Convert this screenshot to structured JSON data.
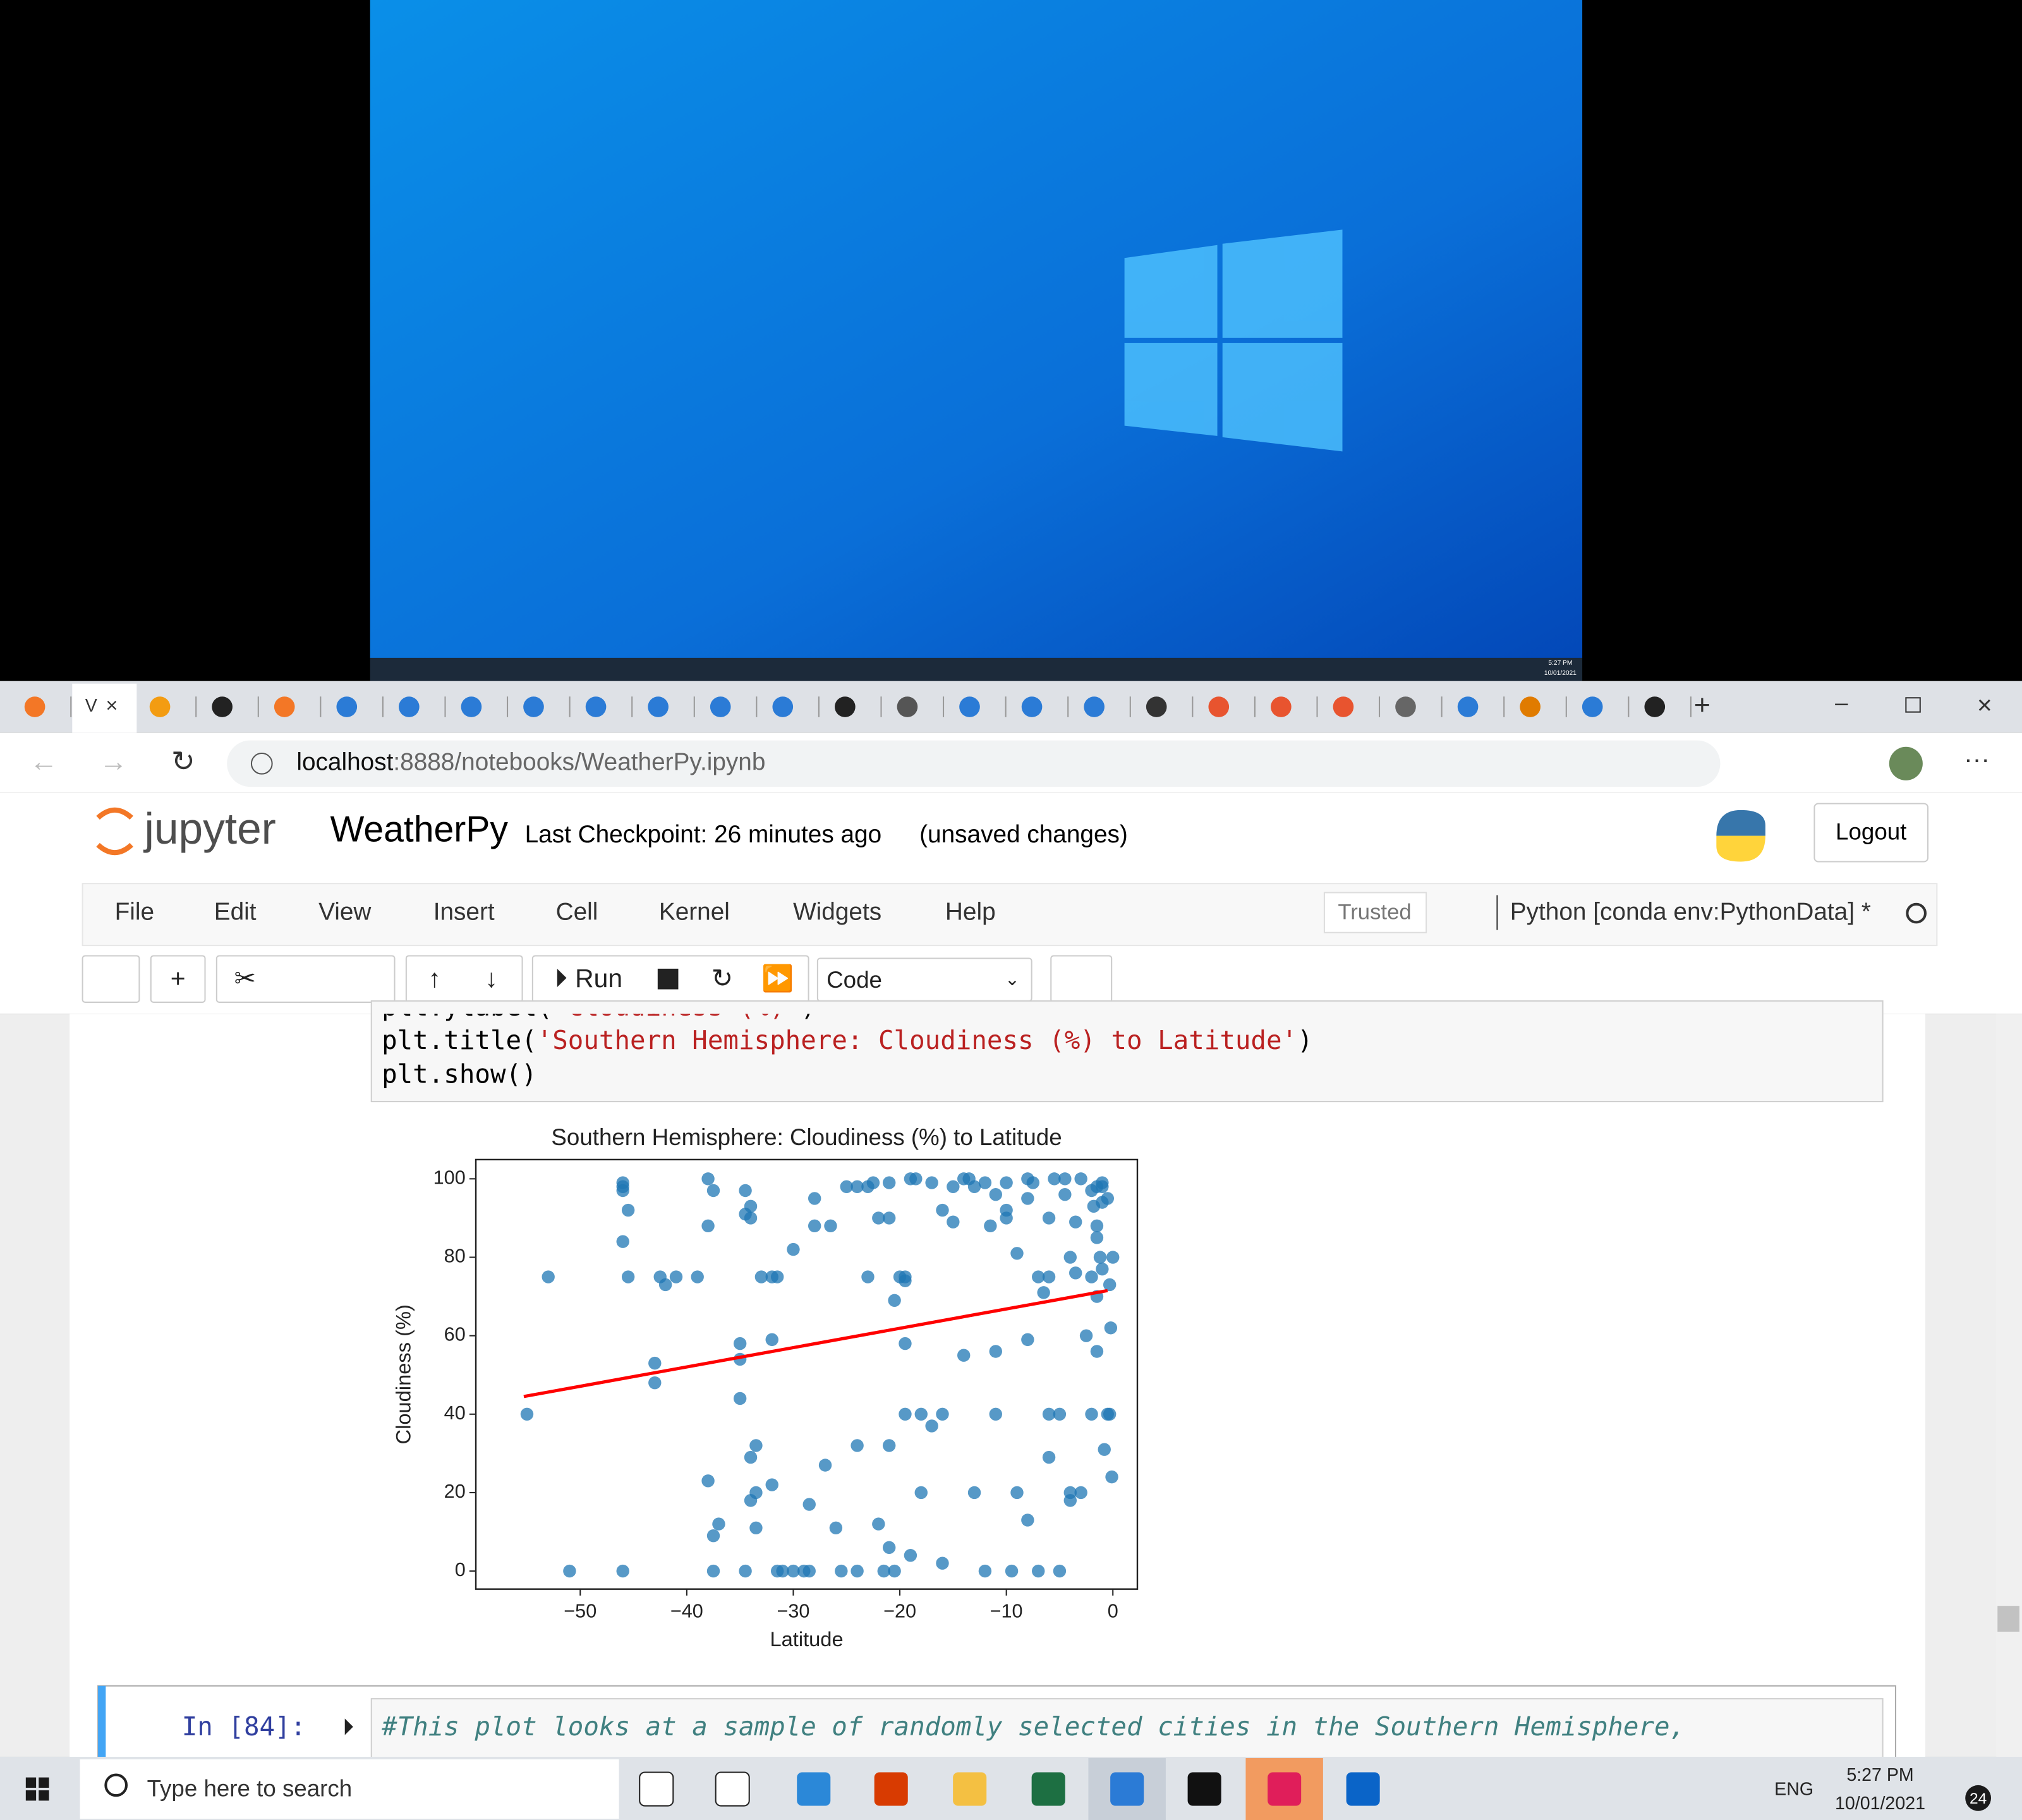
{
  "desktop_preview": {
    "time": "5:27 PM",
    "date": "10/01/2021"
  },
  "browser": {
    "active_tab": "V",
    "url_host": "localhost",
    "url_path": ":8888/notebooks/WeatherPy.ipynb"
  },
  "jupyter": {
    "logo": "jupyter",
    "notebook": "WeatherPy",
    "checkpoint": "Last Checkpoint: 26 minutes ago",
    "status": "(unsaved changes)",
    "logout": "Logout",
    "menu": [
      "File",
      "Edit",
      "View",
      "Insert",
      "Cell",
      "Kernel",
      "Widgets",
      "Help"
    ],
    "trusted": "Trusted",
    "kernel": "Python [conda env:PythonData] *",
    "run": "Run",
    "cell_type": "Code"
  },
  "code": {
    "lines": [
      [
        "plt.ylabel(",
        "'Cloudiness (%)'",
        ")"
      ],
      [
        "plt.title(",
        "'Southern Hemisphere: Cloudiness (%) to Latitude'",
        ")"
      ],
      [
        "plt.show()"
      ]
    ]
  },
  "chart_data": {
    "type": "scatter",
    "title": "Southern Hemisphere: Cloudiness (%) to Latitude",
    "xlabel": "Latitude",
    "ylabel": "Cloudiness (%)",
    "color": "#1f77b4",
    "x": [
      -55,
      -53,
      -51,
      -46,
      -46,
      -46,
      -45.5,
      -46,
      -45.5,
      -46,
      -43,
      -43,
      -42.5,
      -42,
      -41,
      -39,
      -38,
      -38,
      -37.5,
      -38,
      -37.5,
      -37.5,
      -37,
      -35,
      -35,
      -35,
      -34.5,
      -34.5,
      -34,
      -34,
      -34,
      -33.5,
      -33.5,
      -34,
      -33.5,
      -34.5,
      -33,
      -32,
      -31.5,
      -32,
      -32,
      -31.5,
      -31,
      -30,
      -30,
      -29,
      -28.5,
      -28.5,
      -28,
      -28,
      -27,
      -26.5,
      -26,
      -25.5,
      -25,
      -24,
      -24,
      -24,
      -23,
      -23,
      -22.5,
      -22,
      -22,
      -21.5,
      -21,
      -21,
      -21,
      -21,
      -20.5,
      -20.5,
      -20,
      -19.5,
      -19.5,
      -19.5,
      -19.5,
      -19,
      -19,
      -18.5,
      -18,
      -18,
      -17,
      -17,
      -16,
      -16,
      -16,
      -15,
      -15,
      -14,
      -14,
      -13.5,
      -13,
      -13,
      -12,
      -12,
      -11.5,
      -11,
      -11,
      -11,
      -10,
      -10,
      -10,
      -9.5,
      -9,
      -9,
      -8,
      -8,
      -8,
      -8,
      -7.5,
      -7,
      -7,
      -6.5,
      -6,
      -6,
      -6,
      -6,
      -5.5,
      -5,
      -5,
      -4.5,
      -4.5,
      -4,
      -4,
      -4,
      -3.5,
      -3.5,
      -3,
      -3,
      -2.5,
      -2,
      -2,
      -2,
      -1.8,
      -1.5,
      -1.5,
      -1.5,
      -1.5,
      -1.5,
      -1.2,
      -1,
      -1,
      -1,
      -1,
      -0.8,
      -0.5,
      -0.5,
      -0.3,
      -0.3,
      0,
      -0.2,
      -0.1
    ],
    "values": [
      40,
      75,
      0,
      99,
      98,
      97,
      92,
      84,
      75,
      0,
      53,
      48,
      75,
      73,
      75,
      75,
      23,
      100,
      97,
      88,
      0,
      9,
      12,
      58,
      54,
      44,
      91,
      97,
      93,
      90,
      29,
      32,
      20,
      18,
      11,
      0,
      75,
      75,
      75,
      59,
      22,
      0,
      0,
      0,
      82,
      0,
      0,
      17,
      88,
      95,
      27,
      88,
      11,
      0,
      98,
      98,
      32,
      0,
      75,
      98,
      99,
      90,
      12,
      0,
      99,
      90,
      6,
      32,
      69,
      0,
      75,
      75,
      74,
      40,
      58,
      100,
      4,
      100,
      40,
      20,
      37,
      99,
      92,
      40,
      2,
      89,
      98,
      55,
      100,
      100,
      20,
      98,
      99,
      0,
      88,
      96,
      40,
      56,
      90,
      99,
      92,
      0,
      81,
      20,
      95,
      100,
      59,
      13,
      99,
      75,
      0,
      71,
      29,
      40,
      90,
      75,
      100,
      0,
      40,
      100,
      96,
      80,
      18,
      20,
      89,
      76,
      20,
      100,
      60,
      97,
      40,
      75,
      93,
      98,
      88,
      70,
      85,
      56,
      80,
      98,
      99,
      94,
      77,
      31,
      40,
      95,
      40,
      73,
      80,
      62,
      24
    ],
    "regression": {
      "x": [
        -55.3,
        -0.5
      ],
      "values": [
        44.5,
        71.5
      ],
      "color": "#ff0000"
    },
    "xlim": [
      -59.8,
      2.3
    ],
    "ylim": [
      -4.6,
      104.9
    ],
    "xticks": [
      {
        "value": -50,
        "label": "−50"
      },
      {
        "value": -40,
        "label": "−40"
      },
      {
        "value": -30,
        "label": "−30"
      },
      {
        "value": -20,
        "label": "−20"
      },
      {
        "value": -10,
        "label": "−10"
      },
      0
    ],
    "yticks": [
      0,
      20,
      40,
      60,
      80,
      100
    ]
  },
  "next_cell": {
    "prompt": "In [84]:",
    "comment": "#This plot looks at a sample of randomly selected cities in the Southern Hemisphere,"
  },
  "taskbar": {
    "search": "Type here to search",
    "lang": "ENG",
    "time": "5:27 PM",
    "date": "10/01/2021",
    "notifications": "24"
  }
}
